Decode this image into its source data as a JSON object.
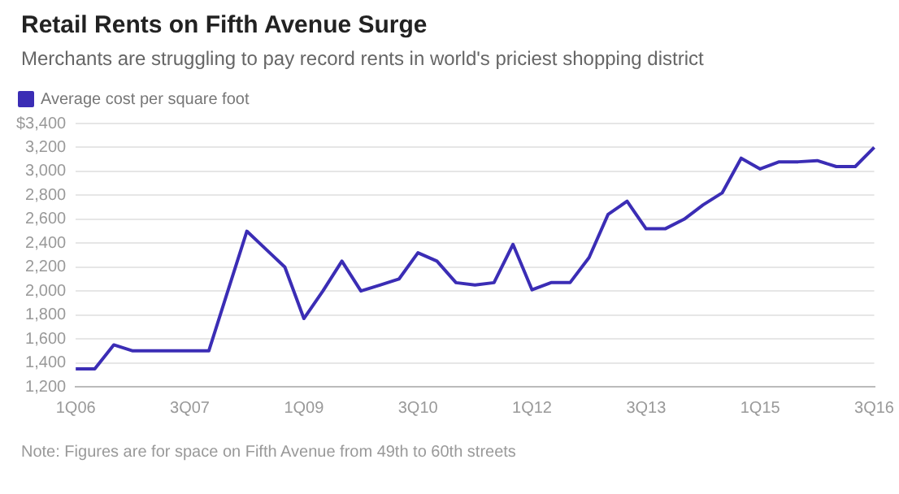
{
  "chart_data": {
    "type": "line",
    "title": "Retail Rents on Fifth Avenue Surge",
    "subtitle": "Merchants are struggling to pay record rents in world's priciest shopping district",
    "annotations": [
      "Note: Figures are for space on Fifth Avenue from 49th to 60th streets"
    ],
    "categories": [
      "1Q06",
      null,
      null,
      null,
      null,
      null,
      "3Q07",
      null,
      null,
      null,
      null,
      null,
      "1Q09",
      null,
      null,
      null,
      null,
      null,
      "3Q10",
      null,
      null,
      null,
      null,
      null,
      "1Q12",
      null,
      null,
      null,
      null,
      null,
      "3Q13",
      null,
      null,
      null,
      null,
      null,
      "1Q15",
      null,
      null,
      null,
      null,
      null,
      "3Q16"
    ],
    "series": [
      {
        "name": "Average cost per square foot",
        "color": "#3b2db5",
        "values": [
          1350,
          1350,
          1550,
          1500,
          1500,
          1500,
          1500,
          1500,
          2000,
          2500,
          2350,
          2200,
          1770,
          2000,
          2250,
          2000,
          2050,
          2100,
          2320,
          2250,
          2070,
          2050,
          2070,
          2390,
          2010,
          2070,
          2070,
          2280,
          2640,
          2750,
          2520,
          2520,
          2600,
          2720,
          2820,
          3110,
          3020,
          3080,
          3080,
          3090,
          3040,
          3040,
          3200
        ]
      }
    ],
    "ylim": [
      1200,
      3400
    ],
    "yticks": [
      {
        "value": 1200,
        "label": "1,200"
      },
      {
        "value": 1400,
        "label": "1,400"
      },
      {
        "value": 1600,
        "label": "1,600"
      },
      {
        "value": 1800,
        "label": "1,800"
      },
      {
        "value": 2000,
        "label": "2,000"
      },
      {
        "value": 2200,
        "label": "2,200"
      },
      {
        "value": 2400,
        "label": "2,400"
      },
      {
        "value": 2600,
        "label": "2,600"
      },
      {
        "value": 2800,
        "label": "2,800"
      },
      {
        "value": 3000,
        "label": "3,000"
      },
      {
        "value": 3200,
        "label": "3,200"
      },
      {
        "value": 3400,
        "label": "$3,400"
      }
    ],
    "grid": "y",
    "legend": "top left",
    "marker": "none",
    "line_style": "solid"
  }
}
